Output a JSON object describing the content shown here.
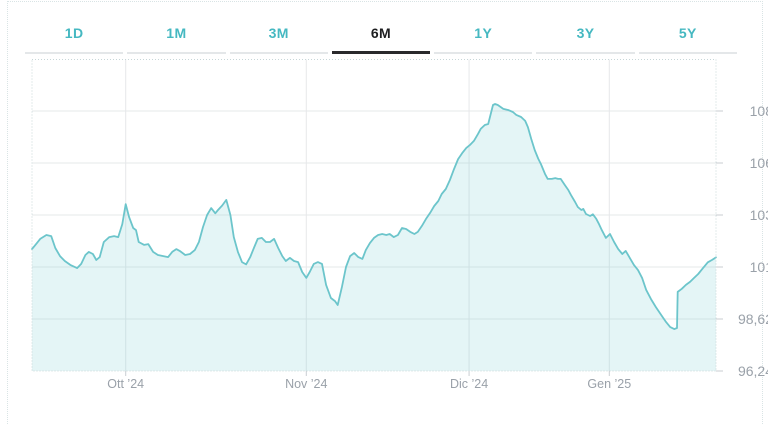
{
  "tabs": {
    "items": [
      {
        "label": "1D",
        "active": false
      },
      {
        "label": "1M",
        "active": false
      },
      {
        "label": "3M",
        "active": false
      },
      {
        "label": "6M",
        "active": true
      },
      {
        "label": "1Y",
        "active": false
      },
      {
        "label": "3Y",
        "active": false
      },
      {
        "label": "5Y",
        "active": false
      }
    ]
  },
  "colors": {
    "accent_teal": "#45b8c1",
    "active_tab_text": "#1d1e20",
    "active_tab_underline": "#2a2a2c",
    "inactive_tab_underline": "#e4e7e9",
    "line": "#6cc5cb",
    "fill": "rgba(108,197,203,0.18)",
    "gridline": "#e6e8ea",
    "plot_border": "#c7d6d8",
    "tick_mark": "#c9ced2",
    "axis_label": "#9aa1a9"
  },
  "chart_data": {
    "type": "area",
    "title": "",
    "selected_range": "6M",
    "x_axis": {
      "labels": [
        {
          "text": "Ott ’24",
          "pos": 0.137
        },
        {
          "text": "Nov ’24",
          "pos": 0.401
        },
        {
          "text": "Dic ’24",
          "pos": 0.639
        },
        {
          "text": "Gen ’25",
          "pos": 0.844
        }
      ]
    },
    "y_axis": {
      "ticks": [
        {
          "label": "108",
          "value": 108
        },
        {
          "label": "106",
          "value": 106
        },
        {
          "label": "103",
          "value": 103
        },
        {
          "label": "101",
          "value": 101
        },
        {
          "label": "98,62",
          "value": 98.62
        },
        {
          "label": "96,24",
          "value": 96.24
        }
      ]
    },
    "series": [
      {
        "name": "price",
        "points": [
          [
            0,
            101.69
          ],
          [
            0.006,
            101.88
          ],
          [
            0.012,
            102.08
          ],
          [
            0.021,
            102.23
          ],
          [
            0.028,
            102.19
          ],
          [
            0.034,
            101.73
          ],
          [
            0.041,
            101.42
          ],
          [
            0.048,
            101.23
          ],
          [
            0.056,
            101.08
          ],
          [
            0.066,
            100.95
          ],
          [
            0.072,
            101.12
          ],
          [
            0.078,
            101.46
          ],
          [
            0.083,
            101.58
          ],
          [
            0.089,
            101.5
          ],
          [
            0.094,
            101.27
          ],
          [
            0.099,
            101.38
          ],
          [
            0.105,
            101.96
          ],
          [
            0.113,
            102.15
          ],
          [
            0.12,
            102.19
          ],
          [
            0.126,
            102.15
          ],
          [
            0.132,
            102.65
          ],
          [
            0.137,
            103.63
          ],
          [
            0.142,
            102.92
          ],
          [
            0.148,
            102.5
          ],
          [
            0.152,
            102.42
          ],
          [
            0.156,
            101.96
          ],
          [
            0.164,
            101.85
          ],
          [
            0.17,
            101.88
          ],
          [
            0.177,
            101.58
          ],
          [
            0.184,
            101.46
          ],
          [
            0.192,
            101.42
          ],
          [
            0.199,
            101.38
          ],
          [
            0.205,
            101.58
          ],
          [
            0.211,
            101.69
          ],
          [
            0.216,
            101.62
          ],
          [
            0.224,
            101.46
          ],
          [
            0.231,
            101.5
          ],
          [
            0.238,
            101.65
          ],
          [
            0.244,
            101.96
          ],
          [
            0.25,
            102.54
          ],
          [
            0.256,
            103.0
          ],
          [
            0.262,
            103.4
          ],
          [
            0.268,
            103.1
          ],
          [
            0.272,
            103.29
          ],
          [
            0.278,
            103.55
          ],
          [
            0.284,
            103.87
          ],
          [
            0.29,
            103.0
          ],
          [
            0.295,
            102.15
          ],
          [
            0.301,
            101.58
          ],
          [
            0.307,
            101.19
          ],
          [
            0.313,
            101.1
          ],
          [
            0.319,
            101.38
          ],
          [
            0.325,
            101.77
          ],
          [
            0.33,
            102.08
          ],
          [
            0.336,
            102.12
          ],
          [
            0.342,
            101.96
          ],
          [
            0.348,
            101.96
          ],
          [
            0.354,
            102.08
          ],
          [
            0.36,
            101.73
          ],
          [
            0.366,
            101.42
          ],
          [
            0.371,
            101.23
          ],
          [
            0.377,
            101.35
          ],
          [
            0.383,
            101.23
          ],
          [
            0.389,
            101.19
          ],
          [
            0.395,
            100.77
          ],
          [
            0.401,
            100.5
          ],
          [
            0.406,
            100.77
          ],
          [
            0.412,
            101.12
          ],
          [
            0.418,
            101.19
          ],
          [
            0.424,
            101.12
          ],
          [
            0.43,
            100.18
          ],
          [
            0.437,
            99.58
          ],
          [
            0.443,
            99.44
          ],
          [
            0.447,
            99.26
          ],
          [
            0.453,
            100.08
          ],
          [
            0.459,
            101.0
          ],
          [
            0.465,
            101.42
          ],
          [
            0.471,
            101.54
          ],
          [
            0.477,
            101.38
          ],
          [
            0.483,
            101.31
          ],
          [
            0.488,
            101.65
          ],
          [
            0.494,
            101.92
          ],
          [
            0.5,
            102.12
          ],
          [
            0.506,
            102.23
          ],
          [
            0.512,
            102.27
          ],
          [
            0.518,
            102.23
          ],
          [
            0.523,
            102.27
          ],
          [
            0.529,
            102.15
          ],
          [
            0.535,
            102.23
          ],
          [
            0.541,
            102.5
          ],
          [
            0.547,
            102.46
          ],
          [
            0.553,
            102.35
          ],
          [
            0.559,
            102.27
          ],
          [
            0.564,
            102.35
          ],
          [
            0.57,
            102.58
          ],
          [
            0.576,
            102.85
          ],
          [
            0.582,
            103.12
          ],
          [
            0.588,
            103.52
          ],
          [
            0.594,
            103.81
          ],
          [
            0.599,
            104.21
          ],
          [
            0.605,
            104.5
          ],
          [
            0.611,
            105.02
          ],
          [
            0.617,
            105.65
          ],
          [
            0.623,
            106.15
          ],
          [
            0.629,
            106.38
          ],
          [
            0.635,
            106.58
          ],
          [
            0.64,
            106.69
          ],
          [
            0.646,
            106.85
          ],
          [
            0.652,
            107.12
          ],
          [
            0.656,
            107.31
          ],
          [
            0.662,
            107.46
          ],
          [
            0.667,
            107.5
          ],
          [
            0.674,
            108.23
          ],
          [
            0.677,
            108.27
          ],
          [
            0.681,
            108.23
          ],
          [
            0.689,
            108.08
          ],
          [
            0.696,
            108.04
          ],
          [
            0.703,
            107.96
          ],
          [
            0.708,
            107.85
          ],
          [
            0.715,
            107.77
          ],
          [
            0.721,
            107.62
          ],
          [
            0.725,
            107.38
          ],
          [
            0.73,
            106.92
          ],
          [
            0.735,
            106.5
          ],
          [
            0.74,
            106.17
          ],
          [
            0.744,
            105.94
          ],
          [
            0.75,
            105.37
          ],
          [
            0.754,
            105.08
          ],
          [
            0.76,
            105.08
          ],
          [
            0.765,
            105.13
          ],
          [
            0.769,
            105.08
          ],
          [
            0.773,
            105.08
          ],
          [
            0.779,
            104.73
          ],
          [
            0.784,
            104.44
          ],
          [
            0.788,
            104.15
          ],
          [
            0.794,
            103.75
          ],
          [
            0.798,
            103.46
          ],
          [
            0.803,
            103.29
          ],
          [
            0.806,
            103.35
          ],
          [
            0.81,
            103.06
          ],
          [
            0.816,
            102.96
          ],
          [
            0.82,
            103.04
          ],
          [
            0.825,
            102.85
          ],
          [
            0.829,
            102.65
          ],
          [
            0.833,
            102.42
          ],
          [
            0.839,
            102.12
          ],
          [
            0.845,
            102.27
          ],
          [
            0.851,
            101.96
          ],
          [
            0.857,
            101.69
          ],
          [
            0.863,
            101.5
          ],
          [
            0.868,
            101.62
          ],
          [
            0.874,
            101.35
          ],
          [
            0.88,
            101.08
          ],
          [
            0.886,
            100.86
          ],
          [
            0.892,
            100.5
          ],
          [
            0.898,
            99.95
          ],
          [
            0.905,
            99.53
          ],
          [
            0.912,
            99.17
          ],
          [
            0.92,
            98.8
          ],
          [
            0.927,
            98.48
          ],
          [
            0.933,
            98.25
          ],
          [
            0.939,
            98.16
          ],
          [
            0.943,
            98.21
          ],
          [
            0.944,
            99.86
          ],
          [
            0.95,
            100.0
          ],
          [
            0.956,
            100.18
          ],
          [
            0.962,
            100.32
          ],
          [
            0.968,
            100.5
          ],
          [
            0.974,
            100.68
          ],
          [
            0.981,
            100.95
          ],
          [
            0.988,
            101.18
          ],
          [
            0.994,
            101.27
          ],
          [
            1,
            101.37
          ]
        ]
      }
    ],
    "grid": true,
    "legend": false
  }
}
